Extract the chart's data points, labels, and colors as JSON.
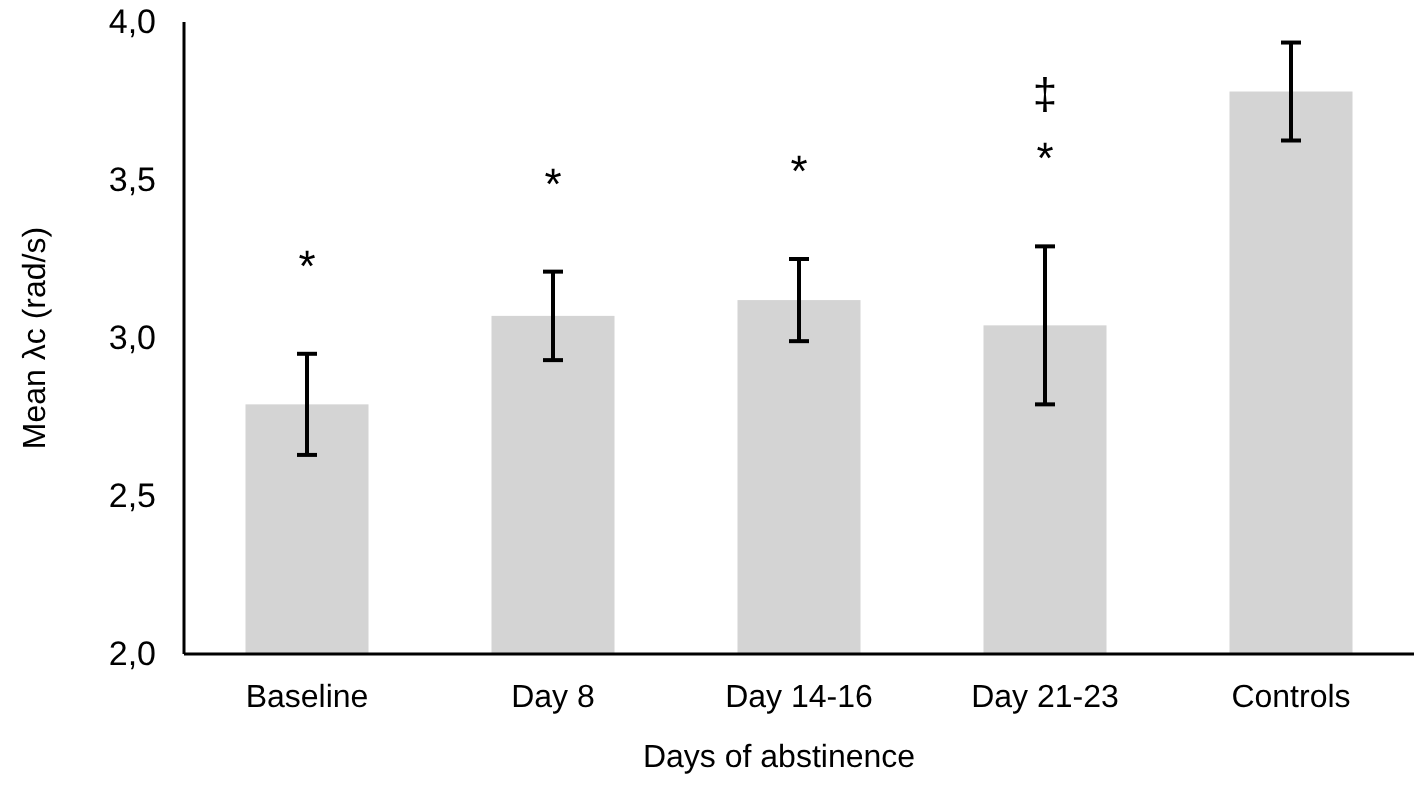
{
  "chart_data": {
    "type": "bar",
    "xlabel": "Days of abstinence",
    "ylabel": "Mean λc (rad/s)",
    "categories": [
      "Baseline",
      "Day 8",
      "Day 14-16",
      "Day 21-23",
      "Controls"
    ],
    "values": [
      2.79,
      3.07,
      3.12,
      3.04,
      3.78
    ],
    "errors": [
      0.16,
      0.14,
      0.13,
      0.25,
      0.155
    ],
    "color": "#d4d4d4",
    "ylim": [
      2,
      4
    ],
    "yticks": [
      {
        "value": 2,
        "label": "2,0"
      },
      {
        "value": 2.5,
        "label": "2,5"
      },
      {
        "value": 3,
        "label": "3,0"
      },
      {
        "value": 3.5,
        "label": "3,5"
      },
      {
        "value": 4,
        "label": "4,0"
      }
    ],
    "annotations": [
      "*",
      "*",
      "*",
      "*",
      "‡"
    ]
  }
}
